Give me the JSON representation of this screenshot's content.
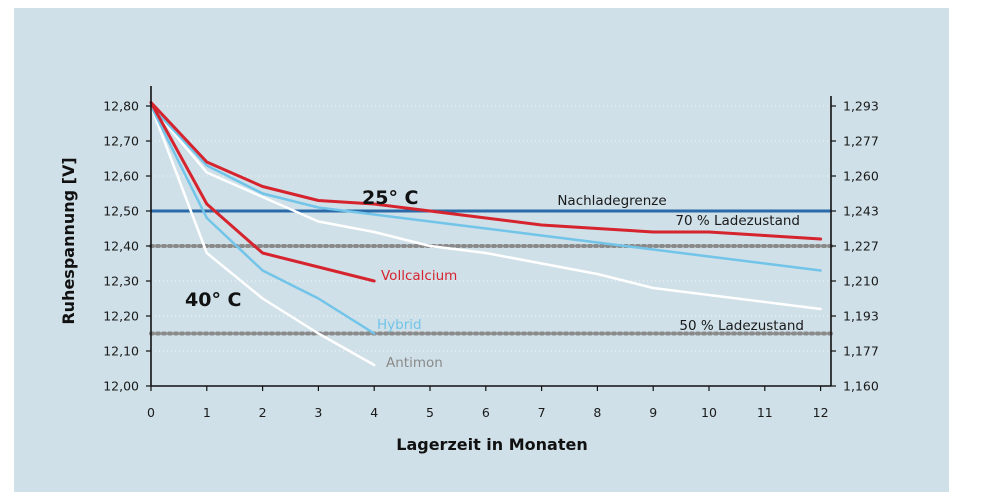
{
  "chart_data": {
    "type": "line",
    "xlabel": "Lagerzeit in Monaten",
    "ylabel": "Ruhespannung [V]",
    "xlim": [
      0,
      12.2
    ],
    "ylim": [
      12.0,
      12.85
    ],
    "x_ticks": [
      "0",
      "1",
      "2",
      "3",
      "4",
      "5",
      "6",
      "7",
      "8",
      "9",
      "10",
      "11",
      "12"
    ],
    "y_ticks": [
      "12,00",
      "12,10",
      "12,20",
      "12,30",
      "12,40",
      "12,50",
      "12,60",
      "12,70",
      "12,80"
    ],
    "y2_ticks": [
      "1,160",
      "1,177",
      "1,193",
      "1,210",
      "1,227",
      "1,243",
      "1,260",
      "1,277",
      "1,293"
    ],
    "grid": "horizontal dotted",
    "series": [
      {
        "name": "Vollcalcium",
        "group": "40° C",
        "color": "#d6242f",
        "x": [
          0,
          1,
          2,
          3,
          4
        ],
        "y": [
          12.81,
          12.52,
          12.38,
          12.34,
          12.3
        ]
      },
      {
        "name": "Hybrid",
        "group": "40° C",
        "color": "#72c4e8",
        "x": [
          0,
          1,
          2,
          3,
          4
        ],
        "y": [
          12.8,
          12.48,
          12.33,
          12.25,
          12.15
        ]
      },
      {
        "name": "Antimon",
        "group": "40° C",
        "color": "#ffffff",
        "x": [
          0,
          1,
          2,
          3,
          4
        ],
        "y": [
          12.8,
          12.38,
          12.25,
          12.15,
          12.06
        ]
      },
      {
        "name": "",
        "group": "25° C",
        "color": "#d6242f",
        "x": [
          0,
          1,
          2,
          3,
          4,
          5,
          6,
          7,
          8,
          9,
          10,
          11,
          12
        ],
        "y": [
          12.81,
          12.64,
          12.57,
          12.53,
          12.52,
          12.5,
          12.48,
          12.46,
          12.45,
          12.44,
          12.44,
          12.43,
          12.42
        ]
      },
      {
        "name": "",
        "group": "25° C",
        "color": "#72c4e8",
        "x": [
          0,
          1,
          2,
          3,
          4,
          5,
          6,
          7,
          8,
          9,
          10,
          11,
          12
        ],
        "y": [
          12.8,
          12.63,
          12.55,
          12.51,
          12.49,
          12.47,
          12.45,
          12.43,
          12.41,
          12.39,
          12.37,
          12.35,
          12.33
        ]
      },
      {
        "name": "",
        "group": "25° C",
        "color": "#ffffff",
        "x": [
          0,
          1,
          2,
          3,
          4,
          5,
          6,
          7,
          8,
          9,
          10,
          11,
          12
        ],
        "y": [
          12.8,
          12.61,
          12.54,
          12.47,
          12.44,
          12.4,
          12.38,
          12.35,
          12.32,
          12.28,
          12.26,
          12.24,
          12.22
        ]
      }
    ],
    "reference_lines": [
      {
        "label": "Nachladegrenze",
        "y": 12.5,
        "color": "#2a6aa8",
        "style": "solid"
      },
      {
        "label": "70 % Ladezustand",
        "y": 12.4,
        "color": "#8a8a8a",
        "style": "dotted"
      },
      {
        "label": "50 % Ladezustand",
        "y": 12.15,
        "color": "#8a8a8a",
        "style": "dotted"
      }
    ],
    "annotations": [
      "25° C",
      "40° C"
    ]
  }
}
